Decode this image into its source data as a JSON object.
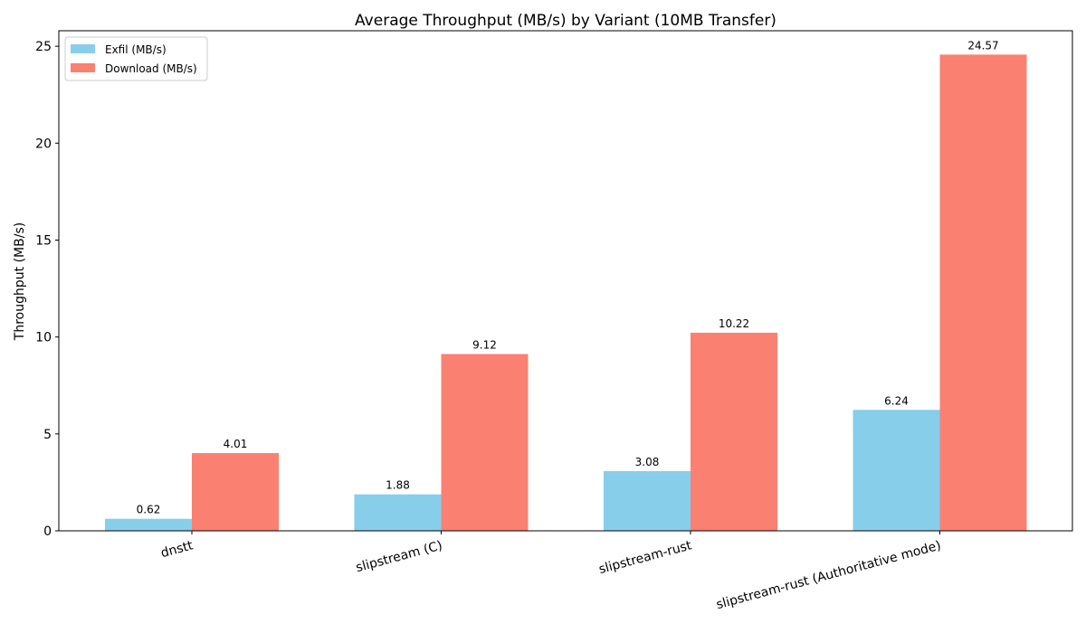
{
  "chart_data": {
    "type": "bar",
    "title": "Average Throughput (MB/s) by Variant (10MB Transfer)",
    "xlabel": "",
    "ylabel": "Throughput (MB/s)",
    "categories": [
      "dnstt",
      "slipstream (C)",
      "slipstream-rust",
      "slipstream-rust (Authoritative mode)"
    ],
    "series": [
      {
        "name": "Exfil (MB/s)",
        "color": "#87CEEB",
        "values": [
          0.62,
          1.88,
          3.08,
          6.24
        ],
        "labels": [
          "0.62",
          "1.88",
          "3.08",
          "6.24"
        ]
      },
      {
        "name": "Download (MB/s)",
        "color": "#FA8072",
        "values": [
          4.01,
          9.12,
          10.22,
          24.57
        ],
        "labels": [
          "4.01",
          "9.12",
          "10.22",
          "24.57"
        ]
      }
    ],
    "ylim": [
      0,
      25.8
    ],
    "yticks": [
      "0",
      "5",
      "10",
      "15",
      "20",
      "25"
    ],
    "grid": false,
    "legend": "top-left"
  }
}
